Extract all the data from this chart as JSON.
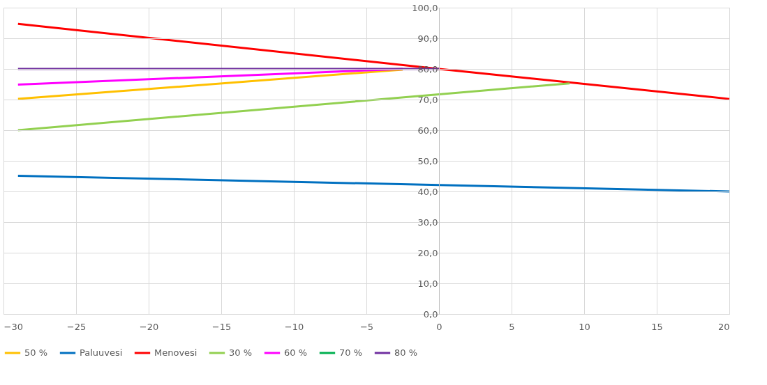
{
  "chart_data": {
    "type": "line",
    "legend": "bottom",
    "grid": true,
    "line_style": "solid",
    "marker": "none",
    "xlim": [
      -30,
      20
    ],
    "xticks": [
      -30,
      -25,
      -20,
      -15,
      -10,
      -5,
      0,
      5,
      10,
      15,
      20
    ],
    "ylim": [
      0,
      100
    ],
    "yticks": [
      {
        "value": 0,
        "label": "0,0"
      },
      {
        "value": 10,
        "label": "10,0"
      },
      {
        "value": 20,
        "label": "20,0"
      },
      {
        "value": 30,
        "label": "30,0"
      },
      {
        "value": 40,
        "label": "40,0"
      },
      {
        "value": 50,
        "label": "50,0"
      },
      {
        "value": 60,
        "label": "60,0"
      },
      {
        "value": 70,
        "label": "70,0"
      },
      {
        "value": 80,
        "label": "80,0"
      },
      {
        "value": 90,
        "label": "90,0"
      },
      {
        "value": 100,
        "label": "100,0"
      }
    ],
    "series": [
      {
        "name": "50 %",
        "color": "#ffc000",
        "x": [
          -29,
          -2.5
        ],
        "values": [
          70.2,
          79.8
        ]
      },
      {
        "name": "Paluuvesi",
        "color": "#0070c0",
        "x": [
          -29,
          0,
          20
        ],
        "values": [
          45.1,
          42.1,
          40.0
        ]
      },
      {
        "name": "Menovesi",
        "color": "#ff0000",
        "x": [
          -29,
          0,
          20
        ],
        "values": [
          94.7,
          80.0,
          70.2
        ]
      },
      {
        "name": "30 %",
        "color": "#92d050",
        "x": [
          -29,
          0,
          9
        ],
        "values": [
          60.0,
          71.7,
          75.3
        ]
      },
      {
        "name": "60 %",
        "color": "#ff00ff",
        "x": [
          -29,
          -2.5
        ],
        "values": [
          74.9,
          80.0
        ]
      },
      {
        "name": "70 %",
        "color": "#00b050"
      },
      {
        "name": "80 %",
        "color": "#7030a0",
        "x": [
          -29,
          0
        ],
        "values": [
          80.0,
          80.0
        ]
      }
    ]
  }
}
